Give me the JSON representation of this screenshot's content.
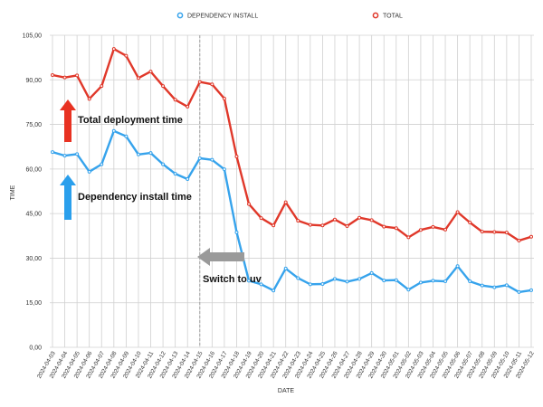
{
  "colors": {
    "install": "#36a3ec",
    "total": "#e0382a",
    "grid": "#d0d0d0",
    "axis_text": "#333333",
    "divider": "#999999",
    "arrow_gray": "#999999"
  },
  "annotations": {
    "total_label": "Total deployment time",
    "install_label": "Dependency install time",
    "switch_label": "Switch to uv"
  },
  "chart_data": {
    "type": "line",
    "xlabel": "DATE",
    "ylabel": "TIME",
    "ylim": [
      0,
      105
    ],
    "yticks": [
      0,
      15,
      30,
      45,
      60,
      75,
      90,
      105
    ],
    "ytick_labels": [
      "0,00",
      "15,00",
      "30,00",
      "45,00",
      "60,00",
      "75,00",
      "90,00",
      "105,00"
    ],
    "grid": true,
    "legend_position": "top-center",
    "divider_x": "2024-04-15",
    "x": [
      "2024-04-03",
      "2024-04-04",
      "2024-04-05",
      "2024-04-06",
      "2024-04-07",
      "2024-04-08",
      "2024-04-09",
      "2024-04-10",
      "2024-04-11",
      "2024-04-12",
      "2024-04-13",
      "2024-04-14",
      "2024-04-15",
      "2024-04-16",
      "2024-04-17",
      "2024-04-18",
      "2024-04-19",
      "2024-04-20",
      "2024-04-21",
      "2024-04-22",
      "2024-04-23",
      "2024-04-24",
      "2024-04-25",
      "2024-04-26",
      "2024-04-27",
      "2024-04-28",
      "2024-04-29",
      "2024-04-30",
      "2024-05-01",
      "2024-05-02",
      "2024-05-03",
      "2024-05-04",
      "2024-05-05",
      "2024-05-06",
      "2024-05-07",
      "2024-05-08",
      "2024-05-09",
      "2024-05-10",
      "2024-05-11",
      "2024-05-12"
    ],
    "series": [
      {
        "name": "DEPENDENCY INSTALL",
        "color": "#36a3ec",
        "values": [
          65.7,
          64.5,
          65.0,
          59.1,
          61.6,
          72.8,
          71.0,
          64.9,
          65.4,
          61.6,
          58.4,
          56.6,
          63.6,
          63.1,
          59.9,
          38.7,
          22.4,
          21.2,
          19.1,
          26.5,
          23.3,
          21.2,
          21.3,
          23.0,
          22.1,
          23.0,
          25.0,
          22.5,
          22.6,
          19.4,
          21.8,
          22.4,
          22.2,
          27.3,
          22.2,
          20.8,
          20.2,
          20.9,
          18.6,
          19.2
        ]
      },
      {
        "name": "TOTAL",
        "color": "#e0382a",
        "values": [
          91.6,
          90.8,
          91.5,
          83.6,
          87.9,
          100.4,
          98.1,
          90.6,
          92.8,
          87.9,
          83.3,
          81.0,
          89.3,
          88.5,
          83.7,
          64.2,
          48.2,
          43.5,
          41.0,
          48.8,
          42.6,
          41.2,
          41.0,
          43.0,
          40.8,
          43.6,
          42.8,
          40.6,
          40.1,
          37.0,
          39.5,
          40.5,
          39.6,
          45.5,
          42.0,
          38.9,
          38.8,
          38.6,
          35.9,
          37.2
        ]
      }
    ]
  }
}
